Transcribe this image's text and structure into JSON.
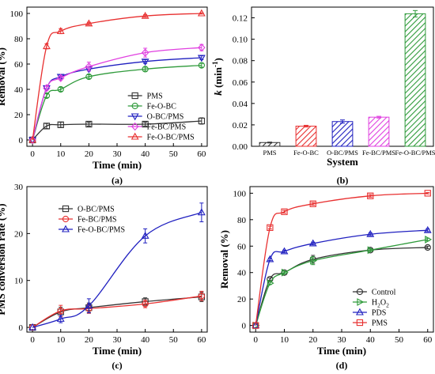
{
  "chart_data": [
    {
      "panel": "(a)",
      "type": "line",
      "xlabel": "Time (min)",
      "ylabel": "Removal (%)",
      "xlim": [
        -2,
        62
      ],
      "ylim": [
        -5,
        105
      ],
      "xticks": [
        0,
        10,
        20,
        30,
        40,
        50,
        60
      ],
      "yticks": [
        0,
        20,
        40,
        60,
        80,
        100
      ],
      "legend_position": "bottom-right",
      "series": [
        {
          "name": "PMS",
          "color": "#333333",
          "marker": "square",
          "x": [
            0,
            5,
            10,
            20,
            40,
            60
          ],
          "y": [
            0,
            11,
            12,
            12.5,
            12.5,
            15
          ],
          "err": [
            0,
            2,
            2,
            1.5,
            1.5,
            2.5
          ]
        },
        {
          "name": "Fe-O-BC",
          "color": "#2e9a3a",
          "marker": "circle",
          "x": [
            0,
            5,
            10,
            20,
            40,
            60
          ],
          "y": [
            0,
            35,
            40,
            50,
            56,
            59
          ],
          "err": [
            0,
            1.5,
            1.5,
            1.5,
            1.5,
            1.5
          ]
        },
        {
          "name": "O-BC/PMS",
          "color": "#2020c0",
          "marker": "triangle-down",
          "x": [
            0,
            5,
            10,
            20,
            40,
            60
          ],
          "y": [
            0,
            41,
            50,
            56,
            62,
            65
          ],
          "err": [
            0,
            1.5,
            1.5,
            1.5,
            1.5,
            1.5
          ]
        },
        {
          "name": "Fe-BC/PMS",
          "color": "#e040e0",
          "marker": "diamond",
          "x": [
            0,
            5,
            10,
            20,
            40,
            60
          ],
          "y": [
            0,
            41,
            49,
            58,
            69,
            73
          ],
          "err": [
            0,
            1.5,
            1.5,
            3.5,
            3.5,
            2.5
          ]
        },
        {
          "name": "Fe-O-BC/PMS",
          "color": "#e83030",
          "marker": "triangle-up",
          "x": [
            0,
            5,
            10,
            20,
            40,
            60
          ],
          "y": [
            0,
            74,
            86,
            92,
            98,
            100
          ],
          "err": [
            0,
            2,
            2,
            1,
            1,
            0.5
          ]
        }
      ]
    },
    {
      "panel": "(b)",
      "type": "bar",
      "xlabel": "System",
      "ylabel_parts": [
        "k",
        " (min",
        "-1",
        ")"
      ],
      "ylim": [
        0,
        0.13
      ],
      "yticks": [
        0.0,
        0.02,
        0.04,
        0.06,
        0.08,
        0.1,
        0.12
      ],
      "ytick_labels": [
        "0.00",
        "0.02",
        "0.04",
        "0.06",
        "0.08",
        "0.10",
        "0.12"
      ],
      "categories": [
        "PMS",
        "Fe-O-BC",
        "O-BC/PMS",
        "Fe-BC/PMS",
        "Fe-O-BC/PMS"
      ],
      "values": [
        0.0035,
        0.0188,
        0.0231,
        0.0272,
        0.1238
      ],
      "err": [
        0.0004,
        0.0008,
        0.0015,
        0.0008,
        0.003
      ],
      "colors": [
        "#333333",
        "#e83030",
        "#2020c0",
        "#e040e0",
        "#2e9a3a"
      ],
      "hatch": "diagonal"
    },
    {
      "panel": "(c)",
      "type": "line",
      "xlabel": "Time (min)",
      "ylabel": "PMS conversion rate (%)",
      "xlim": [
        -2,
        62
      ],
      "ylim": [
        -1,
        30
      ],
      "xticks": [
        0,
        10,
        20,
        30,
        40,
        50,
        60
      ],
      "yticks": [
        0,
        10,
        20,
        30
      ],
      "legend_position": "top-left",
      "series": [
        {
          "name": "O-BC/PMS",
          "color": "#333333",
          "marker": "square",
          "x": [
            0,
            10,
            20,
            40,
            60
          ],
          "y": [
            0,
            3.3,
            4.2,
            5.5,
            6.5
          ],
          "err": [
            0,
            1,
            1,
            0.8,
            1
          ]
        },
        {
          "name": "Fe-BC/PMS",
          "color": "#e83030",
          "marker": "circle",
          "x": [
            0,
            10,
            20,
            40,
            60
          ],
          "y": [
            0,
            3.5,
            4.0,
            5.0,
            6.7
          ],
          "err": [
            0,
            1.2,
            1,
            0.8,
            1
          ]
        },
        {
          "name": "Fe-O-BC/PMS",
          "color": "#2020c0",
          "marker": "triangle-up",
          "x": [
            0,
            10,
            20,
            40,
            60
          ],
          "y": [
            0,
            1.8,
            4.6,
            19.5,
            24.5
          ],
          "err": [
            0,
            0.8,
            1.5,
            1.5,
            2
          ]
        }
      ]
    },
    {
      "panel": "(d)",
      "type": "line",
      "xlabel": "Time (min)",
      "ylabel": "Removal (%)",
      "xlim": [
        -2,
        62
      ],
      "ylim": [
        -5,
        105
      ],
      "xticks": [
        0,
        10,
        20,
        30,
        40,
        50,
        60
      ],
      "yticks": [
        0,
        20,
        40,
        60,
        80,
        100
      ],
      "legend_position": "bottom-right",
      "series": [
        {
          "name": "Control",
          "color": "#333333",
          "marker": "circle",
          "x": [
            0,
            5,
            10,
            20,
            40,
            60
          ],
          "y": [
            0,
            35,
            40,
            50,
            57,
            59
          ],
          "err": [
            0,
            1,
            1,
            3,
            1,
            1
          ]
        },
        {
          "name": "H2O2",
          "name_parts": [
            "H",
            "2",
            "O",
            "2"
          ],
          "color": "#2e9a3a",
          "marker": "triangle-right",
          "x": [
            0,
            5,
            10,
            20,
            40,
            60
          ],
          "y": [
            0,
            32,
            40,
            49,
            57,
            65
          ],
          "err": [
            0,
            1,
            1,
            3,
            1,
            1
          ]
        },
        {
          "name": "PDS",
          "color": "#2020c0",
          "marker": "triangle-up",
          "x": [
            0,
            5,
            10,
            20,
            40,
            60
          ],
          "y": [
            0,
            50,
            56,
            62,
            69,
            72
          ],
          "err": [
            0,
            1,
            1,
            1,
            1,
            1
          ]
        },
        {
          "name": "PMS",
          "color": "#e83030",
          "marker": "square",
          "x": [
            0,
            5,
            10,
            20,
            40,
            60
          ],
          "y": [
            0,
            74,
            86,
            92,
            98,
            100
          ],
          "err": [
            0,
            1,
            1,
            1,
            1,
            0.5
          ]
        }
      ]
    }
  ]
}
